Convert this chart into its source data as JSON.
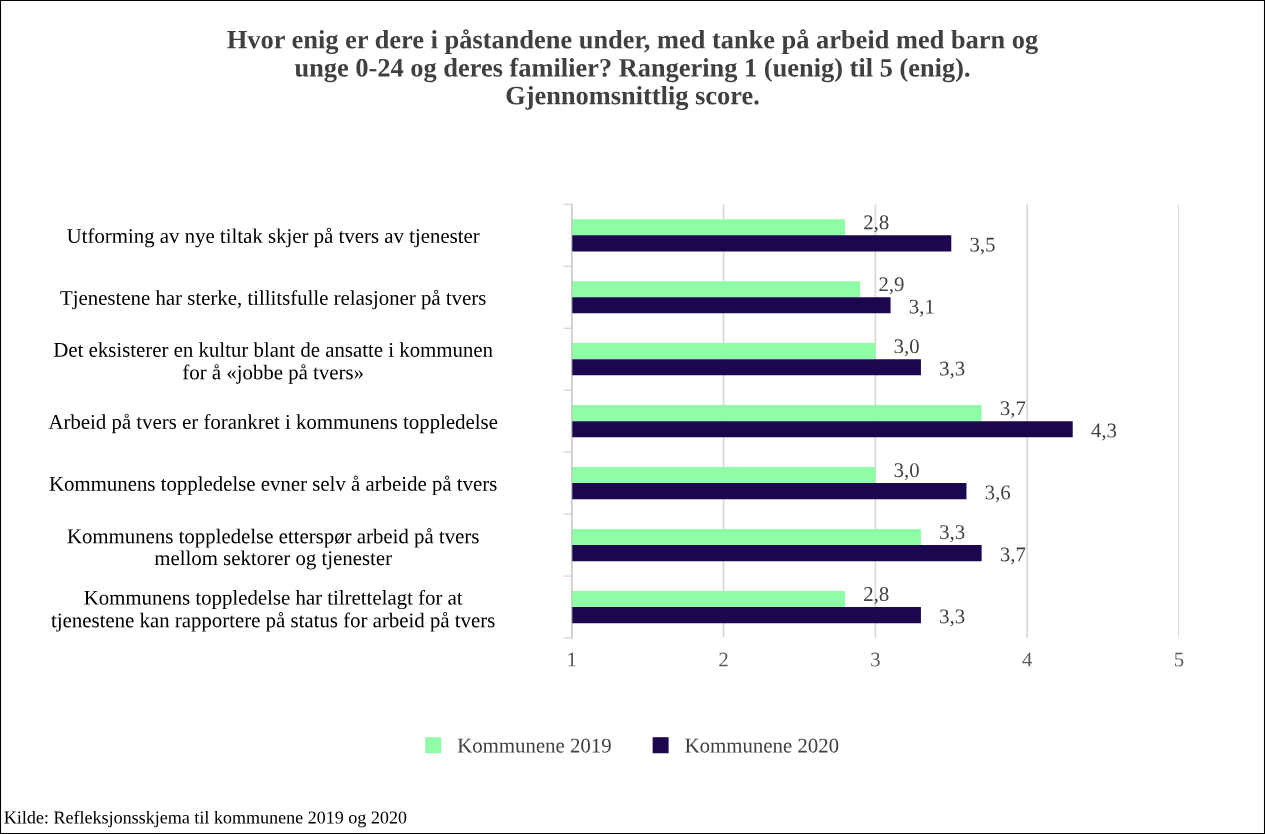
{
  "chart_data": {
    "type": "bar",
    "orientation": "horizontal",
    "title": "Hvor enig er dere i påstandene under, med tanke på arbeid med barn og\nunge 0-24 og deres familier? Rangering 1 (uenig) til 5 (enig).\nGjennomsnittlig score.",
    "categories": [
      "Utforming av nye tiltak skjer på tvers av tjenester",
      "Tjenestene har sterke, tillitsfulle relasjoner på tvers",
      "Det eksisterer en kultur blant de ansatte i kommunen\nfor å «jobbe på tvers»",
      "Arbeid på tvers er forankret i kommunens toppledelse",
      "Kommunens toppledelse evner selv å arbeide på tvers",
      "Kommunens toppledelse etterspør arbeid på tvers\nmellom sektorer og tjenester",
      "Kommunens toppledelse har tilrettelagt for at\ntjenestene kan rapportere på status for arbeid på tvers"
    ],
    "series": [
      {
        "name": "Kommunene 2019",
        "color": "#8ffda6",
        "values": [
          2.8,
          2.9,
          3.0,
          3.7,
          3.0,
          3.3,
          2.8
        ],
        "value_labels": [
          "2,8",
          "2,9",
          "3,0",
          "3,7",
          "3,0",
          "3,3",
          "2,8"
        ]
      },
      {
        "name": "Kommunene 2020",
        "color": "#1a074e",
        "values": [
          3.5,
          3.1,
          3.3,
          4.3,
          3.6,
          3.7,
          3.3
        ],
        "value_labels": [
          "3,5",
          "3,1",
          "3,3",
          "4,3",
          "3,6",
          "3,7",
          "3,3"
        ]
      }
    ],
    "xlim": [
      1,
      5
    ],
    "xticks": [
      1,
      2,
      3,
      4,
      5
    ],
    "grid": "x",
    "legend": "bottom",
    "annotations": [
      "Kilde: Refleksjonsskjema til kommunene 2019 og 2020"
    ]
  }
}
